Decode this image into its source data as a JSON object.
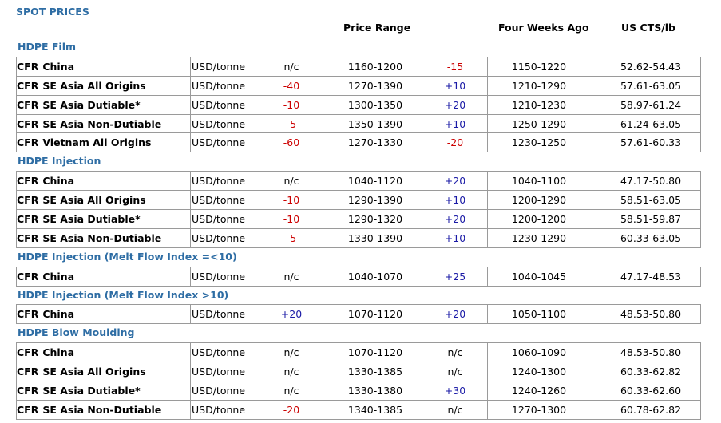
{
  "title": "SPOT PRICES",
  "headers": {
    "price_range": "Price Range",
    "four_weeks_ago": "Four Weeks Ago",
    "us_cts": "US CTS/lb"
  },
  "colors": {
    "title": "#2e6da4",
    "negative": "#cc0000",
    "positive": "#1a1aa6"
  },
  "sections": [
    {
      "label": "HDPE Film",
      "rows": [
        {
          "cfr": "CFR",
          "dest": "China",
          "unit": "USD/tonne",
          "chg1": "n/c",
          "chg1_color": "black",
          "range": "1160-1200",
          "chg2": "-15",
          "chg2_color": "red",
          "four_weeks": "1150-1220",
          "cts": "52.62-54.43"
        },
        {
          "cfr": "CFR",
          "dest": "SE Asia All Origins",
          "unit": "USD/tonne",
          "chg1": "-40",
          "chg1_color": "red",
          "range": "1270-1390",
          "chg2": "+10",
          "chg2_color": "blue",
          "four_weeks": "1210-1290",
          "cts": "57.61-63.05"
        },
        {
          "cfr": "CFR",
          "dest": "SE Asia Dutiable*",
          "unit": "USD/tonne",
          "chg1": "-10",
          "chg1_color": "red",
          "range": "1300-1350",
          "chg2": "+20",
          "chg2_color": "blue",
          "four_weeks": "1210-1230",
          "cts": "58.97-61.24"
        },
        {
          "cfr": "CFR",
          "dest": "SE Asia Non-Dutiable",
          "unit": "USD/tonne",
          "chg1": "-5",
          "chg1_color": "red",
          "range": "1350-1390",
          "chg2": "+10",
          "chg2_color": "blue",
          "four_weeks": "1250-1290",
          "cts": "61.24-63.05"
        },
        {
          "cfr": "CFR",
          "dest": "Vietnam All Origins",
          "unit": "USD/tonne",
          "chg1": "-60",
          "chg1_color": "red",
          "range": "1270-1330",
          "chg2": "-20",
          "chg2_color": "red",
          "four_weeks": "1230-1250",
          "cts": "57.61-60.33"
        }
      ]
    },
    {
      "label": "HDPE Injection",
      "rows": [
        {
          "cfr": "CFR",
          "dest": "China",
          "unit": "USD/tonne",
          "chg1": "n/c",
          "chg1_color": "black",
          "range": "1040-1120",
          "chg2": "+20",
          "chg2_color": "blue",
          "four_weeks": "1040-1100",
          "cts": "47.17-50.80"
        },
        {
          "cfr": "CFR",
          "dest": "SE Asia All Origins",
          "unit": "USD/tonne",
          "chg1": "-10",
          "chg1_color": "red",
          "range": "1290-1390",
          "chg2": "+10",
          "chg2_color": "blue",
          "four_weeks": "1200-1290",
          "cts": "58.51-63.05"
        },
        {
          "cfr": "CFR",
          "dest": "SE Asia Dutiable*",
          "unit": "USD/tonne",
          "chg1": "-10",
          "chg1_color": "red",
          "range": "1290-1320",
          "chg2": "+20",
          "chg2_color": "blue",
          "four_weeks": "1200-1200",
          "cts": "58.51-59.87"
        },
        {
          "cfr": "CFR",
          "dest": "SE Asia Non-Dutiable",
          "unit": "USD/tonne",
          "chg1": "-5",
          "chg1_color": "red",
          "range": "1330-1390",
          "chg2": "+10",
          "chg2_color": "blue",
          "four_weeks": "1230-1290",
          "cts": "60.33-63.05"
        }
      ]
    },
    {
      "label": "HDPE Injection (Melt Flow Index =<10)",
      "rows": [
        {
          "cfr": "CFR",
          "dest": "China",
          "unit": "USD/tonne",
          "chg1": "n/c",
          "chg1_color": "black",
          "range": "1040-1070",
          "chg2": "+25",
          "chg2_color": "blue",
          "four_weeks": "1040-1045",
          "cts": "47.17-48.53"
        }
      ]
    },
    {
      "label": "HDPE Injection (Melt Flow Index >10)",
      "rows": [
        {
          "cfr": "CFR",
          "dest": "China",
          "unit": "USD/tonne",
          "chg1": "+20",
          "chg1_color": "blue",
          "range": "1070-1120",
          "chg2": "+20",
          "chg2_color": "blue",
          "four_weeks": "1050-1100",
          "cts": "48.53-50.80"
        }
      ]
    },
    {
      "label": "HDPE Blow Moulding",
      "rows": [
        {
          "cfr": "CFR",
          "dest": "China",
          "unit": "USD/tonne",
          "chg1": "n/c",
          "chg1_color": "black",
          "range": "1070-1120",
          "chg2": "n/c",
          "chg2_color": "black",
          "four_weeks": "1060-1090",
          "cts": "48.53-50.80"
        },
        {
          "cfr": "CFR",
          "dest": "SE Asia All Origins",
          "unit": "USD/tonne",
          "chg1": "n/c",
          "chg1_color": "black",
          "range": "1330-1385",
          "chg2": "n/c",
          "chg2_color": "black",
          "four_weeks": "1240-1300",
          "cts": "60.33-62.82"
        },
        {
          "cfr": "CFR",
          "dest": "SE Asia Dutiable*",
          "unit": "USD/tonne",
          "chg1": "n/c",
          "chg1_color": "black",
          "range": "1330-1380",
          "chg2": "+30",
          "chg2_color": "blue",
          "four_weeks": "1240-1260",
          "cts": "60.33-62.60"
        },
        {
          "cfr": "CFR",
          "dest": "SE Asia Non-Dutiable",
          "unit": "USD/tonne",
          "chg1": "-20",
          "chg1_color": "red",
          "range": "1340-1385",
          "chg2": "n/c",
          "chg2_color": "black",
          "four_weeks": "1270-1300",
          "cts": "60.78-62.82"
        }
      ]
    }
  ]
}
